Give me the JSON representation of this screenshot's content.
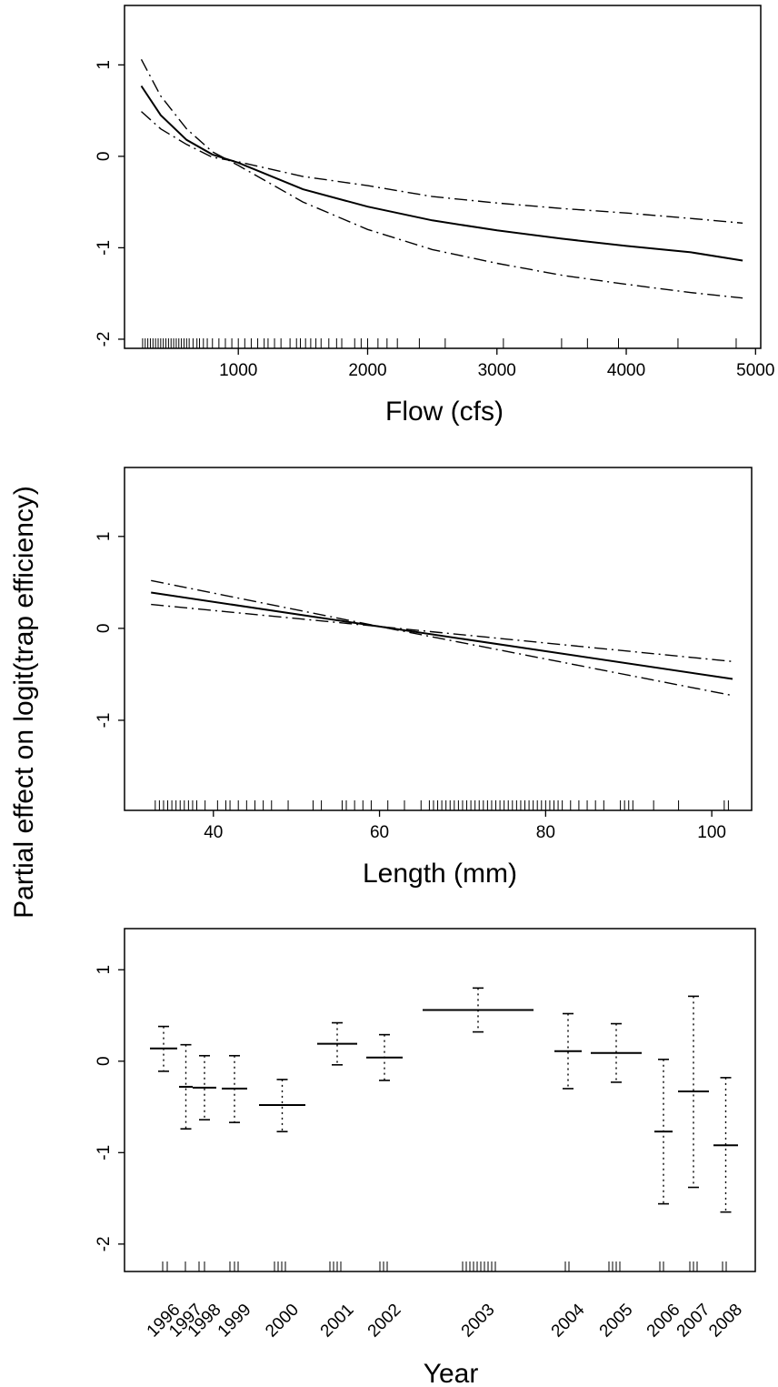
{
  "figure": {
    "shared_ylabel": "Partial effect on logit(trap efficiency)"
  },
  "chart_data": [
    {
      "type": "line",
      "xlabel": "Flow (cfs)",
      "ylabel": "",
      "xlim": [
        120,
        5040
      ],
      "ylim": [
        -2.1,
        1.65
      ],
      "xticks": [
        1000,
        2000,
        3000,
        4000,
        5000
      ],
      "yticks": [
        -2,
        -1,
        0,
        1
      ],
      "grid": false,
      "series": [
        {
          "style": "solid",
          "x": [
            250,
            400,
            600,
            800,
            1000,
            1500,
            2000,
            2500,
            3000,
            3500,
            4000,
            4500,
            4900
          ],
          "y": [
            0.77,
            0.45,
            0.18,
            0.02,
            -0.07,
            -0.36,
            -0.55,
            -0.7,
            -0.81,
            -0.9,
            -0.98,
            -1.05,
            -1.14
          ]
        },
        {
          "style": "dashdot",
          "x": [
            250,
            400,
            600,
            800,
            1000,
            1500,
            2000,
            2500,
            3000,
            3500,
            4000,
            4500,
            4900
          ],
          "y": [
            1.06,
            0.66,
            0.3,
            0.05,
            -0.1,
            -0.5,
            -0.8,
            -1.02,
            -1.17,
            -1.3,
            -1.4,
            -1.49,
            -1.55
          ]
        },
        {
          "style": "dashdot",
          "x": [
            250,
            400,
            600,
            800,
            1000,
            1500,
            2000,
            2500,
            3000,
            3500,
            4000,
            4500,
            4900
          ],
          "y": [
            0.49,
            0.3,
            0.13,
            -0.01,
            -0.06,
            -0.22,
            -0.32,
            -0.44,
            -0.51,
            -0.57,
            -0.62,
            -0.68,
            -0.73
          ]
        }
      ],
      "rug": [
        260,
        280,
        300,
        320,
        340,
        360,
        380,
        400,
        420,
        440,
        460,
        480,
        500,
        520,
        540,
        560,
        580,
        600,
        620,
        650,
        680,
        700,
        730,
        760,
        800,
        850,
        900,
        950,
        1000,
        1050,
        1100,
        1150,
        1200,
        1230,
        1280,
        1330,
        1400,
        1450,
        1480,
        1520,
        1560,
        1600,
        1640,
        1700,
        1760,
        1800,
        1900,
        1950,
        2000,
        2080,
        2150,
        2230,
        2400,
        2600,
        3050,
        3500,
        3700,
        3940,
        4400,
        4850
      ]
    },
    {
      "type": "line",
      "xlabel": "Length (mm)",
      "ylabel": "",
      "xlim": [
        29.3,
        104.8
      ],
      "ylim": [
        -1.98,
        1.75
      ],
      "xticks": [
        40,
        60,
        80,
        100
      ],
      "yticks": [
        -1,
        0,
        1
      ],
      "grid": false,
      "series": [
        {
          "style": "solid",
          "x": [
            32.5,
            60,
            102.5
          ],
          "y": [
            0.39,
            0.02,
            -0.55
          ]
        },
        {
          "style": "dashdot",
          "x": [
            32.5,
            60,
            102.5
          ],
          "y": [
            0.52,
            0.02,
            -0.36
          ]
        },
        {
          "style": "dashdot",
          "x": [
            32.5,
            60,
            102.5
          ],
          "y": [
            0.26,
            0.02,
            -0.73
          ]
        }
      ],
      "rug": [
        33,
        33.5,
        34,
        34.5,
        35,
        35.5,
        36,
        36.5,
        37,
        37.5,
        38,
        39,
        40.5,
        41.5,
        42,
        43,
        44,
        45,
        46,
        47,
        49,
        52,
        53,
        55.5,
        56,
        57,
        58,
        59,
        61,
        63,
        65,
        66,
        66.5,
        67,
        67.5,
        68,
        68.5,
        69,
        69.5,
        70,
        70.5,
        71,
        71.5,
        72,
        72.5,
        73,
        73.5,
        74,
        74.5,
        75,
        75.5,
        76,
        76.5,
        77,
        77.5,
        78,
        78.5,
        79,
        79.5,
        80,
        80.5,
        81,
        81.5,
        82,
        83,
        84,
        85,
        86,
        87,
        89,
        89.5,
        90,
        90.5,
        93,
        96,
        101.5,
        102
      ]
    },
    {
      "type": "errorbar",
      "xlabel": "Year",
      "ylabel": "",
      "ylim": [
        -2.3,
        1.45
      ],
      "yticks": [
        -2,
        -1,
        0,
        1
      ],
      "grid": false,
      "categories": [
        "1996",
        "1997",
        "1998",
        "1999",
        "2000",
        "2001",
        "2002",
        "2003",
        "2004",
        "2005",
        "2006",
        "2007",
        "2008"
      ],
      "estimate": [
        0.14,
        -0.28,
        -0.29,
        -0.3,
        -0.48,
        0.19,
        0.04,
        0.56,
        0.11,
        0.09,
        -0.77,
        -0.33,
        -0.92
      ],
      "upper": [
        0.38,
        0.18,
        0.06,
        0.06,
        -0.2,
        0.42,
        0.29,
        0.8,
        0.52,
        0.41,
        0.02,
        0.71,
        -0.18
      ],
      "lower": [
        -0.11,
        -0.74,
        -0.64,
        -0.67,
        -0.77,
        -0.04,
        -0.21,
        0.32,
        -0.3,
        -0.23,
        -1.56,
        -1.38,
        -1.65
      ]
    }
  ]
}
